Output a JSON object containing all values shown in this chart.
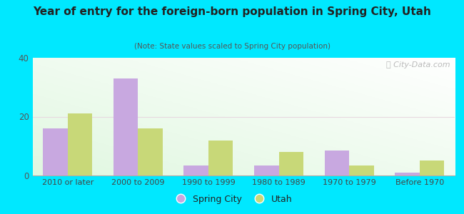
{
  "title": "Year of entry for the foreign-born population in Spring City, Utah",
  "subtitle": "(Note: State values scaled to Spring City population)",
  "categories": [
    "2010 or later",
    "2000 to 2009",
    "1990 to 1999",
    "1980 to 1989",
    "1970 to 1979",
    "Before 1970"
  ],
  "spring_city_values": [
    16,
    33,
    3.5,
    3.5,
    8.5,
    1
  ],
  "utah_values": [
    21,
    16,
    12,
    8,
    3.5,
    5
  ],
  "spring_city_color": "#c8a8e0",
  "utah_color": "#c8d878",
  "background_outer": "#00e8ff",
  "background_plot_tl": [
    0.92,
    1.0,
    0.92
  ],
  "background_plot_br": [
    1.0,
    1.0,
    1.0
  ],
  "ylim": [
    0,
    40
  ],
  "yticks": [
    0,
    20,
    40
  ],
  "bar_width": 0.35,
  "legend_labels": [
    "Spring City",
    "Utah"
  ],
  "watermark": "ⓘ City-Data.com",
  "grid_color": "#e8d8e0",
  "spine_color": "#aaaaaa"
}
